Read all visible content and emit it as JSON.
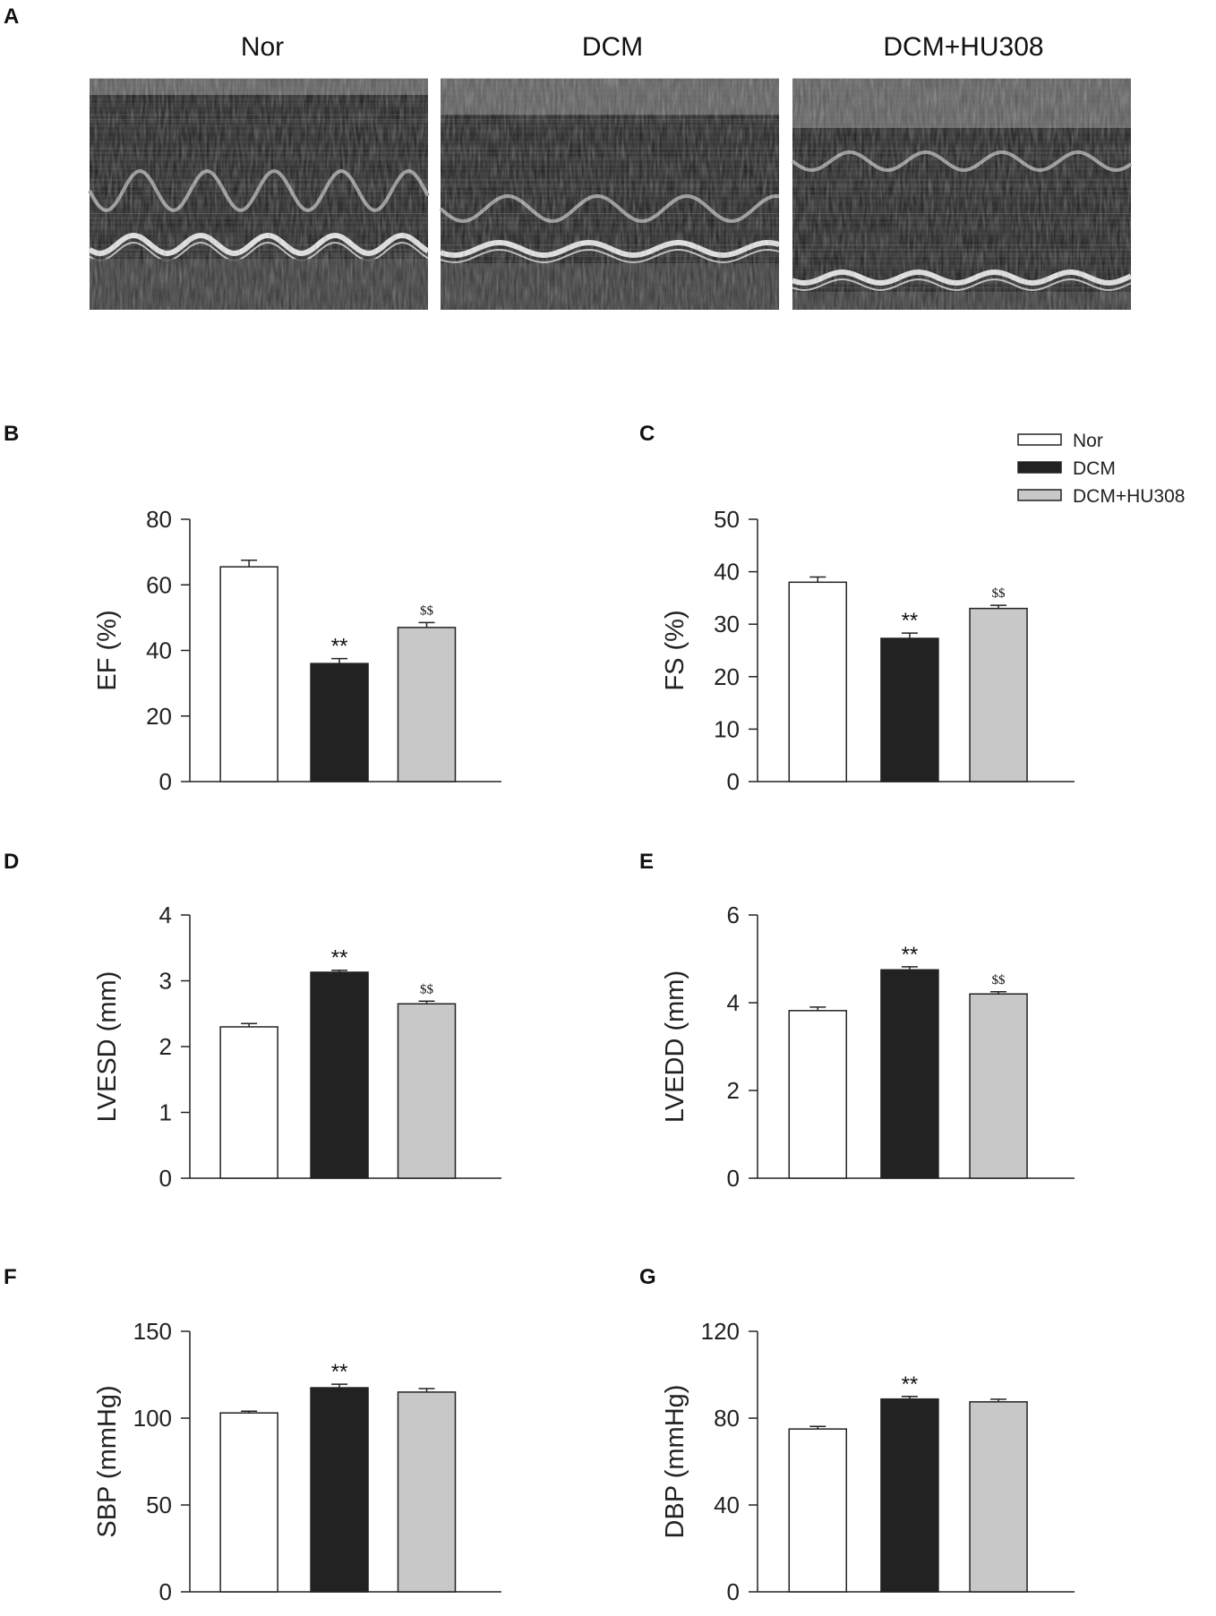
{
  "figure": {
    "panel_a_letter": "A",
    "echo_groups": [
      "Nor",
      "DCM",
      "DCM+HU308"
    ]
  },
  "legend": {
    "entries": [
      {
        "label": "Nor",
        "color": "#ffffff"
      },
      {
        "label": "DCM",
        "color": "#222222"
      },
      {
        "label": "DCM+HU308",
        "color": "#c8c8c8"
      }
    ]
  },
  "chart_data": [
    {
      "panel": "B",
      "type": "bar",
      "categories": [
        "Nor",
        "DCM",
        "DCM+HU308"
      ],
      "values": [
        65.5,
        36,
        47
      ],
      "errors": [
        2,
        1.5,
        1.5
      ],
      "ylabel": "EF (%)",
      "ylim": [
        0,
        80
      ],
      "yticks": [
        "0",
        "20",
        "40",
        "60",
        "80"
      ],
      "annotations": [
        "",
        "**",
        "$$"
      ]
    },
    {
      "panel": "C",
      "type": "bar",
      "categories": [
        "Nor",
        "DCM",
        "DCM+HU308"
      ],
      "values": [
        38,
        27.3,
        33
      ],
      "errors": [
        1,
        1,
        0.6
      ],
      "ylabel": "FS (%)",
      "ylim": [
        0,
        50
      ],
      "yticks": [
        "0",
        "10",
        "20",
        "30",
        "40",
        "50"
      ],
      "annotations": [
        "",
        "**",
        "$$"
      ]
    },
    {
      "panel": "D",
      "type": "bar",
      "categories": [
        "Nor",
        "DCM",
        "DCM+HU308"
      ],
      "values": [
        2.3,
        3.13,
        2.65
      ],
      "errors": [
        0.05,
        0.03,
        0.04
      ],
      "ylabel": "LVESD (mm)",
      "ylim": [
        0,
        4
      ],
      "yticks": [
        "0",
        "1",
        "2",
        "3",
        "4"
      ],
      "annotations": [
        "",
        "**",
        "$$"
      ]
    },
    {
      "panel": "E",
      "type": "bar",
      "categories": [
        "Nor",
        "DCM",
        "DCM+HU308"
      ],
      "values": [
        3.82,
        4.75,
        4.2
      ],
      "errors": [
        0.08,
        0.07,
        0.05
      ],
      "ylabel": "LVEDD (mm)",
      "ylim": [
        0,
        6
      ],
      "yticks": [
        "0",
        "2",
        "4",
        "6"
      ],
      "annotations": [
        "",
        "**",
        "$$"
      ]
    },
    {
      "panel": "F",
      "type": "bar",
      "categories": [
        "Nor",
        "DCM",
        "DCM+HU308"
      ],
      "values": [
        103,
        117.5,
        115
      ],
      "errors": [
        1,
        2,
        2
      ],
      "ylabel": "SBP (mmHg)",
      "ylim": [
        0,
        150
      ],
      "yticks": [
        "0",
        "50",
        "100",
        "150"
      ],
      "annotations": [
        "",
        "**",
        ""
      ]
    },
    {
      "panel": "G",
      "type": "bar",
      "categories": [
        "Nor",
        "DCM",
        "DCM+HU308"
      ],
      "values": [
        75,
        88.8,
        87.5
      ],
      "errors": [
        1.2,
        1.2,
        1.2
      ],
      "ylabel": "DBP (mmHg)",
      "ylim": [
        0,
        120
      ],
      "yticks": [
        "0",
        "40",
        "80",
        "120"
      ],
      "annotations": [
        "",
        "**",
        ""
      ]
    }
  ]
}
